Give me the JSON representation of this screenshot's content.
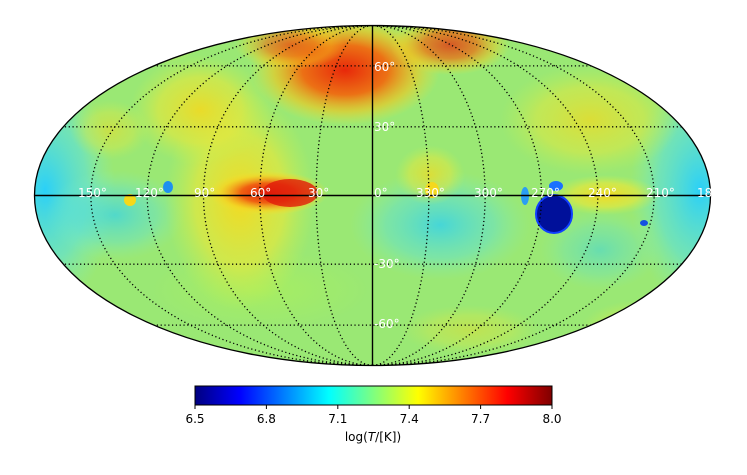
{
  "map": {
    "projection": "mollweide",
    "lon_labels": [
      "150°",
      "120°",
      "90°",
      "60°",
      "30°",
      "0°",
      "330°",
      "300°",
      "270°",
      "240°",
      "210°",
      "18"
    ],
    "lat_labels": [
      "60°",
      "30°",
      "-30°",
      "-60°"
    ],
    "colormap": "jet"
  },
  "colorbar": {
    "min": 6.5,
    "max": 8.0,
    "ticks": [
      "6.5",
      "6.8",
      "7.1",
      "7.4",
      "7.7",
      "8.0"
    ],
    "label_prefix": "log(",
    "label_var": "T",
    "label_suffix": "/[K])",
    "colors": [
      "#00007f",
      "#0000ff",
      "#007fff",
      "#00ffff",
      "#7fff7f",
      "#ffff00",
      "#ff7f00",
      "#ff0000",
      "#7f0000"
    ]
  }
}
